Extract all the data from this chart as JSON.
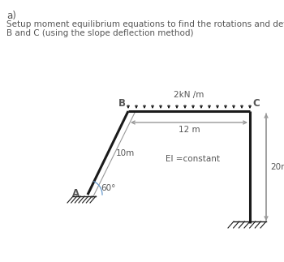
{
  "title_a": "a)",
  "description": "Setup moment equilibrium equations to find the rotations and deflections at\nB and C (using the slope deflection method)",
  "load_label": "2kN /m",
  "dim_label_BC": "12 m",
  "dim_label_CD": "20m",
  "dim_label_AB": "10m",
  "angle_label": "60°",
  "node_A": "A",
  "node_B": "B",
  "node_C": "C",
  "EI_label": "EI =constant",
  "bg_color": "#ffffff",
  "line_color": "#1a1a1a",
  "text_color": "#555555",
  "gray_color": "#999999",
  "angle_arc_color": "#6699cc"
}
